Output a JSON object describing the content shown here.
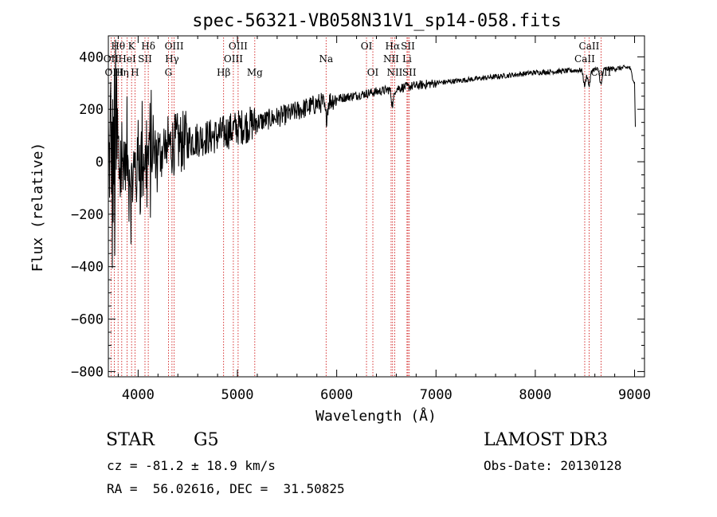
{
  "chart_data": {
    "type": "line",
    "title": "spec-56321-VB058N31V1_sp14-058.fits",
    "xlabel": "Wavelength (Å)",
    "ylabel": "Flux (relative)",
    "xlim": [
      3700,
      9100
    ],
    "ylim": [
      -820,
      480
    ],
    "xticks": [
      4000,
      5000,
      6000,
      7000,
      8000,
      9000
    ],
    "yticks": [
      -800,
      -600,
      -400,
      -200,
      0,
      200,
      400
    ],
    "line_color": "#000000",
    "marker_color": "#cc0000",
    "continuum": [
      [
        3700,
        0
      ],
      [
        3900,
        -10
      ],
      [
        4100,
        20
      ],
      [
        4300,
        60
      ],
      [
        4500,
        80
      ],
      [
        4800,
        100
      ],
      [
        5000,
        130
      ],
      [
        5200,
        150
      ],
      [
        5500,
        180
      ],
      [
        5800,
        220
      ],
      [
        6000,
        240
      ],
      [
        6300,
        260
      ],
      [
        6600,
        280
      ],
      [
        7000,
        300
      ],
      [
        7500,
        320
      ],
      [
        8000,
        340
      ],
      [
        8500,
        350
      ],
      [
        8800,
        355
      ],
      [
        8950,
        360
      ],
      [
        9000,
        300
      ],
      [
        9010,
        100
      ]
    ],
    "lines": [
      {
        "name": "Hθ",
        "wl": 3798,
        "row": 0
      },
      {
        "name": "OII",
        "wl": 3727,
        "row": 1
      },
      {
        "name": "OIII",
        "wl": 3760,
        "row": 2
      },
      {
        "name": "Hη",
        "wl": 3835,
        "row": 2
      },
      {
        "name": "K",
        "wl": 3934,
        "row": 0
      },
      {
        "name": "HeI",
        "wl": 3889,
        "row": 1
      },
      {
        "name": "SII",
        "wl": 4069,
        "row": 1
      },
      {
        "name": "H",
        "wl": 3968,
        "row": 2
      },
      {
        "name": "Hδ",
        "wl": 4102,
        "row": 0
      },
      {
        "name": "OIII",
        "wl": 4363,
        "row": 0
      },
      {
        "name": "Hγ",
        "wl": 4341,
        "row": 1
      },
      {
        "name": "G",
        "wl": 4305,
        "row": 2
      },
      {
        "name": "Hβ",
        "wl": 4861,
        "row": 2
      },
      {
        "name": "OIII",
        "wl": 4959,
        "row": 1
      },
      {
        "name": "OIII",
        "wl": 5007,
        "row": 0
      },
      {
        "name": "Mg",
        "wl": 5175,
        "row": 2
      },
      {
        "name": "Na",
        "wl": 5893,
        "row": 1
      },
      {
        "name": "OI",
        "wl": 6300,
        "row": 0
      },
      {
        "name": "OI",
        "wl": 6364,
        "row": 2
      },
      {
        "name": "Hα",
        "wl": 6563,
        "row": 0
      },
      {
        "name": "NII",
        "wl": 6548,
        "row": 1
      },
      {
        "name": "NII",
        "wl": 6584,
        "row": 2
      },
      {
        "name": "SII",
        "wl": 6717,
        "row": 0
      },
      {
        "name": "Li",
        "wl": 6708,
        "row": 1
      },
      {
        "name": "SII",
        "wl": 6731,
        "row": 2
      },
      {
        "name": "CaII",
        "wl": 8542,
        "row": 0
      },
      {
        "name": "CaII",
        "wl": 8498,
        "row": 1
      },
      {
        "name": "CaII",
        "wl": 8662,
        "row": 2
      }
    ]
  },
  "info": {
    "class": "STAR",
    "subclass": "G5",
    "cz": "cz = -81.2 ± 18.9 km/s",
    "coords": "RA =  56.02616, DEC =  31.50825",
    "survey": "LAMOST DR3",
    "obs_date": "Obs-Date: 20130128"
  }
}
